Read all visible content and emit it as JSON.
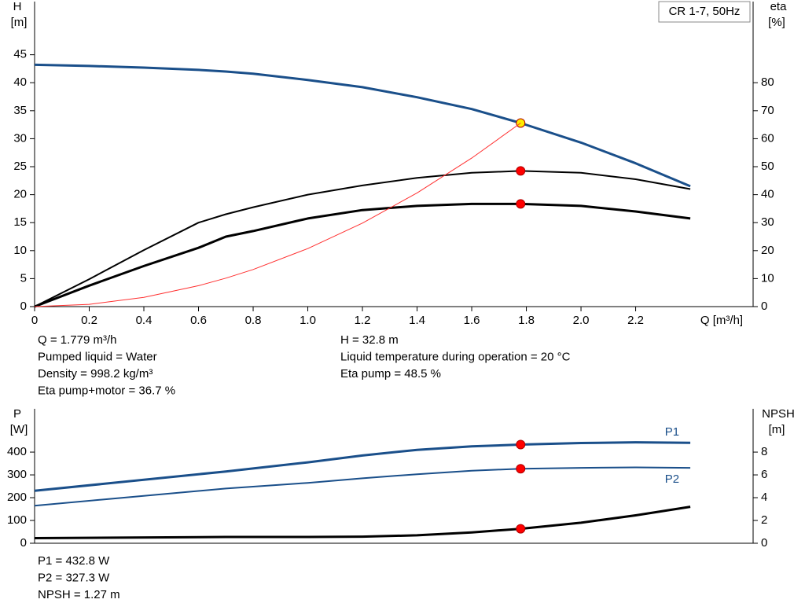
{
  "chart_data": [
    {
      "type": "line",
      "title": "CR 1-7, 50Hz",
      "xlabel": "Q [m³/h]",
      "ylabel": "H",
      "yunit": "[m]",
      "y2label": "eta",
      "y2unit": "[%]",
      "x": [
        0,
        0.2,
        0.4,
        0.6,
        0.7,
        0.8,
        1.0,
        1.2,
        1.4,
        1.6,
        1.779,
        2.0,
        2.2,
        2.4
      ],
      "xlim": [
        0,
        2.63
      ],
      "xticks": [
        0,
        0.2,
        0.4,
        0.6,
        0.8,
        {
          "value": 1,
          "label": "1.0"
        },
        1.2,
        1.4,
        1.6,
        1.8,
        {
          "value": 2,
          "label": "2.0"
        },
        2.2
      ],
      "ylim": [
        0,
        54.5
      ],
      "yticks": [
        0,
        5,
        10,
        15,
        20,
        25,
        30,
        35,
        40,
        45
      ],
      "y2lim": [
        0,
        109
      ],
      "y2ticks": [
        0,
        10,
        20,
        30,
        40,
        50,
        60,
        70,
        80
      ],
      "duty_x": 1.779,
      "series": [
        {
          "color": "#1a4f8a",
          "line_width": 3,
          "marker_color": "#ffee00",
          "values": [
            43.2,
            43.0,
            42.7,
            42.3,
            42.0,
            41.6,
            40.5,
            39.2,
            37.4,
            35.3,
            32.8,
            29.3,
            25.6,
            21.5
          ]
        },
        {
          "color": "#000000",
          "line_width": 2,
          "marker_color": "#ff0000",
          "axis": "y2",
          "values": [
            0,
            9.8,
            20.2,
            30,
            33,
            35.5,
            40,
            43.3,
            46,
            47.8,
            48.5,
            47.8,
            45.5,
            42
          ]
        },
        {
          "color": "#000000",
          "line_width": 3,
          "marker_color": "#ff0000",
          "axis": "y2",
          "values": [
            0,
            7.5,
            14.5,
            21,
            25,
            27,
            31.5,
            34.5,
            36,
            36.7,
            36.7,
            36,
            34,
            31.5
          ]
        },
        {
          "color": "#ff3030",
          "line_width": 1,
          "values": [
            0,
            0.41,
            1.66,
            3.73,
            5.08,
            6.63,
            10.36,
            14.92,
            20.31,
            26.53,
            32.8,
            null,
            null,
            null
          ]
        }
      ],
      "info": [
        [
          "Q = 1.779 m³/h",
          "Pumped liquid = Water",
          "Density = 998.2 kg/m³",
          "Eta pump+motor = 36.7 %"
        ],
        [
          "H = 32.8 m",
          "Liquid temperature during operation = 20 °C",
          "Eta pump = 48.5 %"
        ]
      ]
    },
    {
      "type": "line",
      "ylabel": "P",
      "yunit": "[W]",
      "y2label": "NPSH",
      "y2unit": "[m]",
      "x": [
        0,
        0.7,
        1.0,
        1.2,
        1.4,
        1.6,
        1.779,
        2.0,
        2.2,
        2.4
      ],
      "xlim": [
        0,
        2.63
      ],
      "ylim": [
        0,
        590
      ],
      "yticks": [
        0,
        100,
        200,
        300,
        400
      ],
      "y2lim": [
        0,
        11.8
      ],
      "y2ticks": [
        0,
        2,
        4,
        6,
        8
      ],
      "duty_x": 1.779,
      "series": [
        {
          "name": "P1",
          "color": "#1a4f8a",
          "line_width": 3,
          "marker_color": "#ff0000",
          "values": [
            230,
            315,
            355,
            385,
            410,
            425,
            433,
            440,
            443,
            441
          ]
        },
        {
          "name": "P2",
          "color": "#1a4f8a",
          "line_width": 2,
          "marker_color": "#ff0000",
          "values": [
            165,
            240,
            265,
            285,
            303,
            318,
            327,
            331,
            333,
            331
          ]
        },
        {
          "color": "#000000",
          "line_width": 3,
          "marker_color": "#ff0000",
          "axis": "y2",
          "values": [
            0.45,
            0.55,
            0.55,
            0.58,
            0.7,
            0.95,
            1.27,
            1.8,
            2.45,
            3.2
          ]
        }
      ],
      "info": [
        [
          "P1 = 432.8 W",
          "P2 = 327.3 W",
          "NPSH = 1.27 m"
        ]
      ]
    }
  ]
}
